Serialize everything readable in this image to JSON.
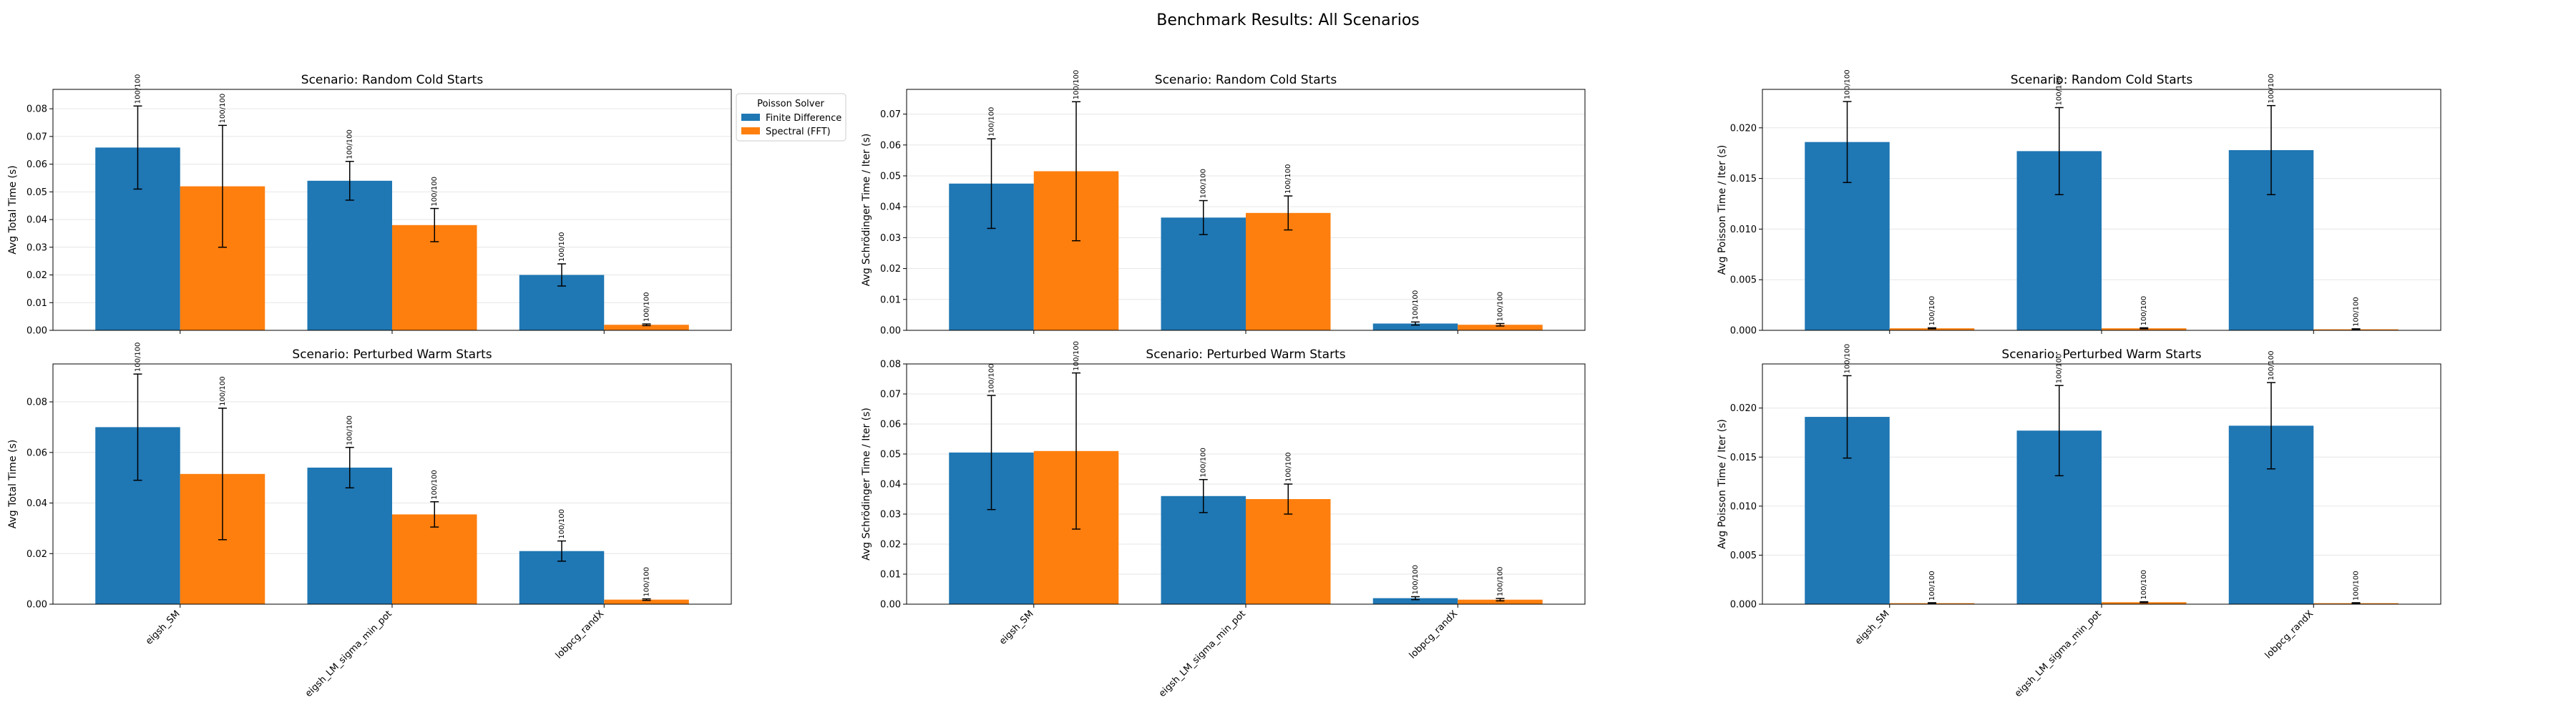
{
  "suptitle": "Benchmark Results: All Scenarios",
  "legend": {
    "title": "Poisson Solver",
    "placement": "upper-right-outside-first-panel",
    "items": [
      {
        "label": "Finite Difference",
        "color": "#1f77b4"
      },
      {
        "label": "Spectral (FFT)",
        "color": "#ff7f0e"
      }
    ]
  },
  "chart_data": [
    {
      "type": "bar",
      "row": 0,
      "col": 0,
      "title": "Scenario: Random Cold Starts",
      "ylabel": "Avg Total Time (s)",
      "ylim": [
        0,
        0.087
      ],
      "yticks": [
        "0.00",
        "0.01",
        "0.02",
        "0.03",
        "0.04",
        "0.05",
        "0.06",
        "0.07",
        "0.08"
      ],
      "grid": true,
      "categories": [
        "eigsh_SM",
        "eigsh_LM_sigma_min_pot",
        "lobpcg_randX"
      ],
      "show_xticklabels": false,
      "series": [
        {
          "name": "Finite Difference",
          "color": "#1f77b4",
          "values": [
            0.066,
            0.054,
            0.02
          ],
          "err": [
            0.015,
            0.007,
            0.004
          ],
          "labels": [
            "100/100",
            "100/100",
            "100/100"
          ]
        },
        {
          "name": "Spectral (FFT)",
          "color": "#ff7f0e",
          "values": [
            0.052,
            0.038,
            0.002
          ],
          "err": [
            0.022,
            0.006,
            0.0003
          ],
          "labels": [
            "100/100",
            "100/100",
            "100/100"
          ]
        }
      ]
    },
    {
      "type": "bar",
      "row": 0,
      "col": 1,
      "title": "Scenario: Random Cold Starts",
      "ylabel": "Avg Schrödinger Time / Iter (s)",
      "ylim": [
        0,
        0.078
      ],
      "yticks": [
        "0.00",
        "0.01",
        "0.02",
        "0.03",
        "0.04",
        "0.05",
        "0.06",
        "0.07"
      ],
      "grid": true,
      "categories": [
        "eigsh_SM",
        "eigsh_LM_sigma_min_pot",
        "lobpcg_randX"
      ],
      "show_xticklabels": false,
      "series": [
        {
          "name": "Finite Difference",
          "color": "#1f77b4",
          "values": [
            0.0475,
            0.0365,
            0.0022
          ],
          "err": [
            0.0145,
            0.0055,
            0.0005
          ],
          "labels": [
            "100/100",
            "100/100",
            "100/100"
          ]
        },
        {
          "name": "Spectral (FFT)",
          "color": "#ff7f0e",
          "values": [
            0.0515,
            0.038,
            0.0018
          ],
          "err": [
            0.0225,
            0.0055,
            0.0004
          ],
          "labels": [
            "100/100",
            "100/100",
            "100/100"
          ]
        }
      ]
    },
    {
      "type": "bar",
      "row": 0,
      "col": 2,
      "title": "Scenario: Random Cold Starts",
      "ylabel": "Avg Poisson Time / Iter (s)",
      "ylim": [
        0,
        0.0238
      ],
      "yticks": [
        "0.000",
        "0.005",
        "0.010",
        "0.015",
        "0.020"
      ],
      "grid": true,
      "categories": [
        "eigsh_SM",
        "eigsh_LM_sigma_min_pot",
        "lobpcg_randX"
      ],
      "show_xticklabels": false,
      "series": [
        {
          "name": "Finite Difference",
          "color": "#1f77b4",
          "values": [
            0.0186,
            0.0177,
            0.0178
          ],
          "err": [
            0.004,
            0.0043,
            0.0044
          ],
          "labels": [
            "100/100",
            "100/100",
            "100/100"
          ]
        },
        {
          "name": "Spectral (FFT)",
          "color": "#ff7f0e",
          "values": [
            0.0002,
            0.0002,
            0.0001
          ],
          "err": [
            5e-05,
            5e-05,
            5e-05
          ],
          "labels": [
            "100/100",
            "100/100",
            "100/100"
          ]
        }
      ]
    },
    {
      "type": "bar",
      "row": 1,
      "col": 0,
      "title": "Scenario: Perturbed Warm Starts",
      "ylabel": "Avg Total Time (s)",
      "ylim": [
        0,
        0.095
      ],
      "yticks": [
        "0.00",
        "0.02",
        "0.04",
        "0.06",
        "0.08"
      ],
      "grid": true,
      "categories": [
        "eigsh_SM",
        "eigsh_LM_sigma_min_pot",
        "lobpcg_randX"
      ],
      "show_xticklabels": true,
      "series": [
        {
          "name": "Finite Difference",
          "color": "#1f77b4",
          "values": [
            0.07,
            0.054,
            0.021
          ],
          "err": [
            0.021,
            0.008,
            0.004
          ],
          "labels": [
            "100/100",
            "100/100",
            "100/100"
          ]
        },
        {
          "name": "Spectral (FFT)",
          "color": "#ff7f0e",
          "values": [
            0.0515,
            0.0355,
            0.0018
          ],
          "err": [
            0.026,
            0.005,
            0.0003
          ],
          "labels": [
            "100/100",
            "100/100",
            "100/100"
          ]
        }
      ]
    },
    {
      "type": "bar",
      "row": 1,
      "col": 1,
      "title": "Scenario: Perturbed Warm Starts",
      "ylabel": "Avg Schrödinger Time / Iter (s)",
      "ylim": [
        0,
        0.08
      ],
      "yticks": [
        "0.00",
        "0.01",
        "0.02",
        "0.03",
        "0.04",
        "0.05",
        "0.06",
        "0.07",
        "0.08"
      ],
      "grid": true,
      "categories": [
        "eigsh_SM",
        "eigsh_LM_sigma_min_pot",
        "lobpcg_randX"
      ],
      "show_xticklabels": true,
      "series": [
        {
          "name": "Finite Difference",
          "color": "#1f77b4",
          "values": [
            0.0505,
            0.036,
            0.002
          ],
          "err": [
            0.019,
            0.0055,
            0.0005
          ],
          "labels": [
            "100/100",
            "100/100",
            "100/100"
          ]
        },
        {
          "name": "Spectral (FFT)",
          "color": "#ff7f0e",
          "values": [
            0.051,
            0.035,
            0.0015
          ],
          "err": [
            0.026,
            0.005,
            0.0004
          ],
          "labels": [
            "100/100",
            "100/100",
            "100/100"
          ]
        }
      ]
    },
    {
      "type": "bar",
      "row": 1,
      "col": 2,
      "title": "Scenario: Perturbed Warm Starts",
      "ylabel": "Avg Poisson Time / Iter (s)",
      "ylim": [
        0,
        0.0245
      ],
      "yticks": [
        "0.000",
        "0.005",
        "0.010",
        "0.015",
        "0.020"
      ],
      "grid": true,
      "categories": [
        "eigsh_SM",
        "eigsh_LM_sigma_min_pot",
        "lobpcg_randX"
      ],
      "show_xticklabels": true,
      "series": [
        {
          "name": "Finite Difference",
          "color": "#1f77b4",
          "values": [
            0.0191,
            0.0177,
            0.0182
          ],
          "err": [
            0.0042,
            0.0046,
            0.0044
          ],
          "labels": [
            "100/100",
            "100/100",
            "100/100"
          ]
        },
        {
          "name": "Spectral (FFT)",
          "color": "#ff7f0e",
          "values": [
            0.0001,
            0.0002,
            0.0001
          ],
          "err": [
            5e-05,
            5e-05,
            5e-05
          ],
          "labels": [
            "100/100",
            "100/100",
            "100/100"
          ]
        }
      ]
    }
  ]
}
